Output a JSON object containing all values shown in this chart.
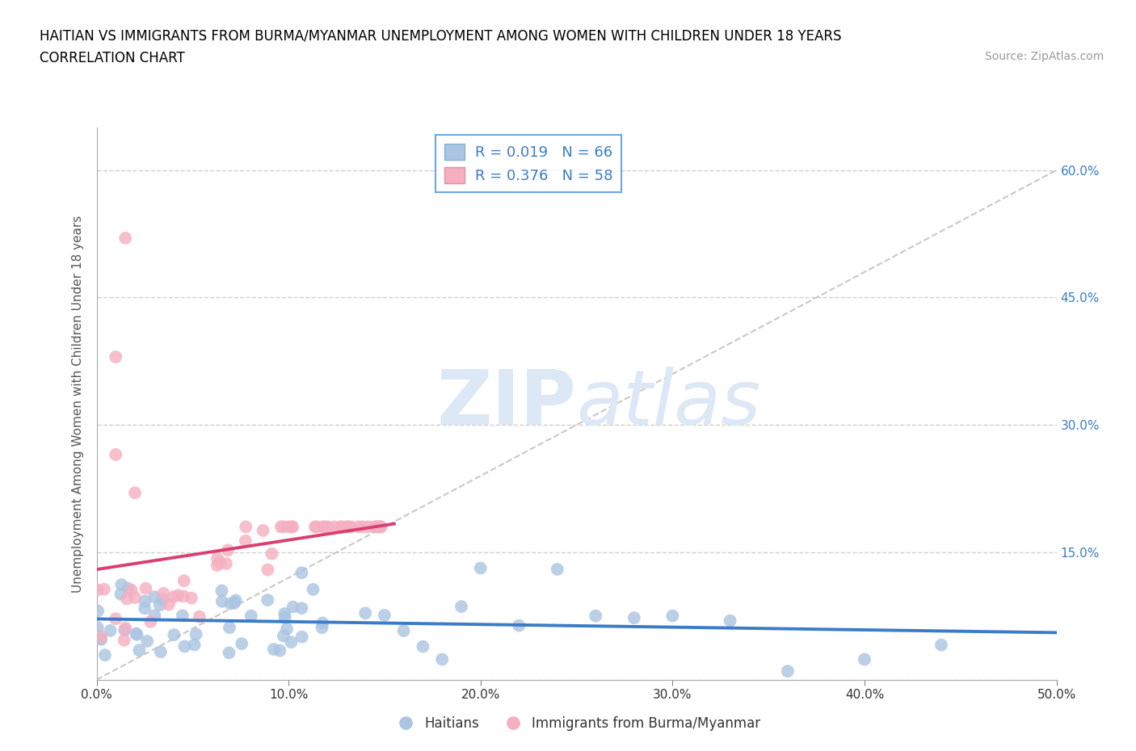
{
  "title_line1": "HAITIAN VS IMMIGRANTS FROM BURMA/MYANMAR UNEMPLOYMENT AMONG WOMEN WITH CHILDREN UNDER 18 YEARS",
  "title_line2": "CORRELATION CHART",
  "source_text": "Source: ZipAtlas.com",
  "ylabel": "Unemployment Among Women with Children Under 18 years",
  "xlim": [
    0.0,
    0.5
  ],
  "ylim": [
    0.0,
    0.65
  ],
  "xticks": [
    0.0,
    0.1,
    0.2,
    0.3,
    0.4,
    0.5
  ],
  "xticklabels": [
    "0.0%",
    "10.0%",
    "20.0%",
    "30.0%",
    "40.0%",
    "50.0%"
  ],
  "yticks": [
    0.0,
    0.15,
    0.3,
    0.45,
    0.6
  ],
  "haitians_R": 0.019,
  "haitians_N": 66,
  "burma_R": 0.376,
  "burma_N": 58,
  "color_haitians": "#aac4e2",
  "color_burma": "#f5afc0",
  "color_haitians_line": "#3a7cc7",
  "color_burma_line": "#d94070",
  "color_trend_line": "#c8c8c8",
  "watermark_color": "#dce8f5",
  "legend_border_color": "#4a90d9",
  "grid_color": "#d0d0d0",
  "right_ytick_labels": [
    "",
    "15.0%",
    "30.0%",
    "45.0%",
    "60.0%"
  ]
}
